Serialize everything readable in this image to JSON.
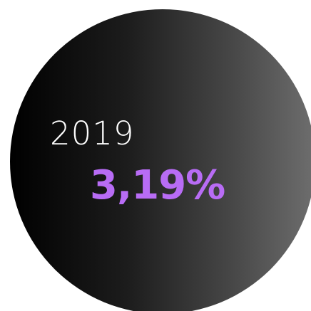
{
  "stat": {
    "year": "2019",
    "value": "3,19%"
  },
  "colors": {
    "value_color": "#b86cf5",
    "year_color": "#ffffff",
    "circle_gradient_start": "#000000",
    "circle_gradient_end": "#6e6e6e",
    "background": "#ffffff"
  }
}
